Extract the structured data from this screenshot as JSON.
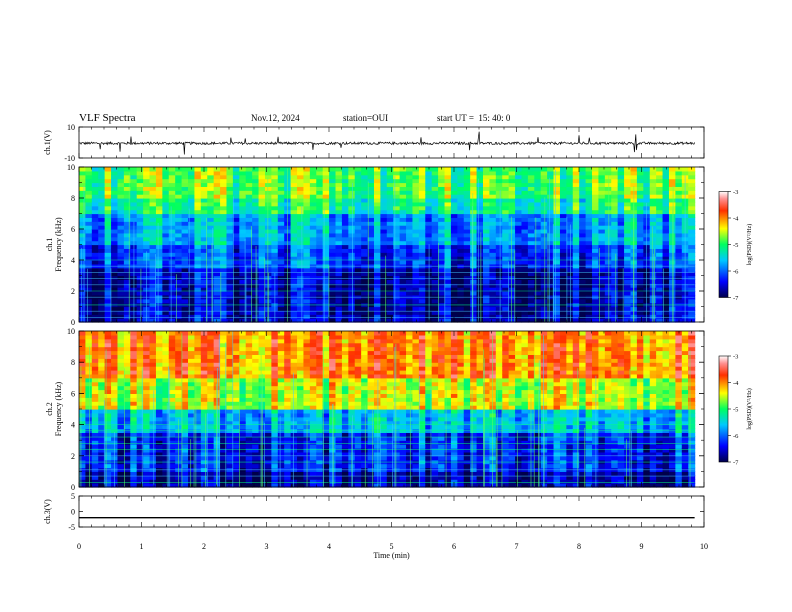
{
  "header": {
    "title": "VLF Spectra",
    "date": "Nov.12, 2024",
    "station": "station=OUI",
    "start_time": "start UT =  15: 40: 0"
  },
  "chart_data": [
    {
      "type": "line",
      "ylabel": "ch.1(V)",
      "ylim": [
        -10,
        10
      ],
      "y_ticks": [
        "10",
        "-10"
      ],
      "description_level": -0.5
    },
    {
      "type": "heatmap",
      "ylabel_top": "ch.1",
      "ylabel": "Frequency (kHz)",
      "ylim": [
        0,
        10
      ],
      "y_ticks": [
        "0",
        "2",
        "4",
        "6",
        "8",
        "10"
      ],
      "colorbar": {
        "label": "log(PSD)(V²/Hz)",
        "range": [
          -7,
          -3
        ],
        "ticks": [
          "-3",
          "-4",
          "-5",
          "-6",
          "-7"
        ]
      }
    },
    {
      "type": "heatmap",
      "ylabel_top": "ch.2",
      "ylabel": "Frequency (kHz)",
      "ylim": [
        0,
        10
      ],
      "y_ticks": [
        "0",
        "2",
        "4",
        "6",
        "8",
        "10"
      ],
      "colorbar": {
        "label": "log(PSD)(V²/Hz)",
        "range": [
          -7,
          -3
        ],
        "ticks": [
          "-3",
          "-4",
          "-5",
          "-6",
          "-7"
        ]
      }
    },
    {
      "type": "line",
      "ylabel": "ch.3(V)",
      "ylim": [
        -5,
        5
      ],
      "y_ticks": [
        "5",
        "0",
        "-5"
      ],
      "level": -2
    }
  ],
  "xaxis": {
    "label": "Time (min)",
    "range": [
      0,
      10
    ],
    "ticks": [
      "0",
      "1",
      "2",
      "3",
      "4",
      "5",
      "6",
      "7",
      "8",
      "9",
      "10"
    ],
    "data_end": 9.85
  }
}
